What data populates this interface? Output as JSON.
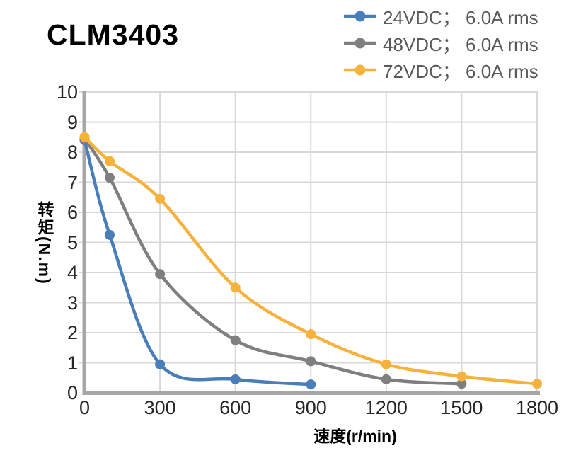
{
  "header": {
    "title": "CLM3403"
  },
  "axes": {
    "x_title": "速度(r/min)",
    "y_title": "转矩(N.m)"
  },
  "style": {
    "gridline_color": "#d9d9d9",
    "axis_color": "#a6a6a6",
    "tick_label_color": "#262626",
    "legend_text_color": "#595959",
    "background": "#ffffff"
  },
  "chart_data": {
    "type": "line",
    "title": "CLM3403",
    "xlabel": "速度(r/min)",
    "ylabel": "转矩(N.m)",
    "xlim": [
      0,
      1800
    ],
    "ylim": [
      0,
      10
    ],
    "x_ticks": [
      0,
      300,
      600,
      900,
      1200,
      1500,
      1800
    ],
    "y_ticks": [
      0,
      1,
      2,
      3,
      4,
      5,
      6,
      7,
      8,
      9,
      10
    ],
    "grid": true,
    "legend_position": "top-right",
    "marker": "circle",
    "series": [
      {
        "name": "24VDC； 6.0A rms",
        "color": "#4a7ebb",
        "points": [
          [
            0,
            8.4
          ],
          [
            100,
            5.25
          ],
          [
            300,
            0.95
          ],
          [
            600,
            0.45
          ],
          [
            900,
            0.28
          ]
        ]
      },
      {
        "name": "48VDC； 6.0A rms",
        "color": "#7f7f7f",
        "points": [
          [
            0,
            8.45
          ],
          [
            100,
            7.15
          ],
          [
            300,
            3.95
          ],
          [
            600,
            1.75
          ],
          [
            900,
            1.05
          ],
          [
            1200,
            0.45
          ],
          [
            1500,
            0.3
          ]
        ]
      },
      {
        "name": "72VDC； 6.0A rms",
        "color": "#f6b23d",
        "points": [
          [
            0,
            8.5
          ],
          [
            100,
            7.7
          ],
          [
            300,
            6.45
          ],
          [
            600,
            3.5
          ],
          [
            900,
            1.95
          ],
          [
            1200,
            0.95
          ],
          [
            1500,
            0.55
          ],
          [
            1800,
            0.3
          ]
        ]
      }
    ]
  }
}
